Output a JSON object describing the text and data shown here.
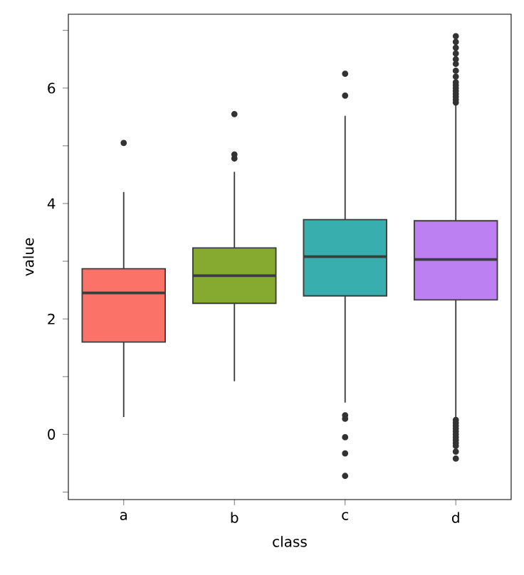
{
  "chart_data": {
    "type": "box",
    "xlabel": "class",
    "ylabel": "value",
    "categories": [
      "a",
      "b",
      "c",
      "d"
    ],
    "colors": [
      "#fa7268",
      "#86aa2f",
      "#38aeae",
      "#bc80f2"
    ],
    "boxes": [
      {
        "low": 0.3,
        "q1": 1.6,
        "median": 2.45,
        "q3": 2.87,
        "high": 4.2,
        "outliers": [
          5.05
        ]
      },
      {
        "low": 0.92,
        "q1": 2.27,
        "median": 2.75,
        "q3": 3.23,
        "high": 4.55,
        "outliers": [
          4.78,
          4.85,
          5.55
        ]
      },
      {
        "low": 0.55,
        "q1": 2.4,
        "median": 3.08,
        "q3": 3.72,
        "high": 5.52,
        "outliers": [
          6.25,
          5.87,
          0.33,
          0.27,
          -0.05,
          -0.33,
          -0.72
        ]
      },
      {
        "low": 0.3,
        "q1": 2.33,
        "median": 3.03,
        "q3": 3.7,
        "high": 5.73,
        "outliers": [
          5.75,
          5.8,
          5.85,
          5.9,
          5.95,
          6.0,
          6.05,
          6.1,
          6.2,
          6.3,
          6.42,
          6.5,
          6.6,
          6.7,
          6.8,
          6.9,
          0.25,
          0.2,
          0.15,
          0.1,
          0.05,
          0.0,
          -0.05,
          -0.1,
          -0.15,
          -0.2,
          -0.3,
          -0.42
        ]
      }
    ],
    "ylim": [
      -1.13,
      7.28
    ],
    "yticks": [
      {
        "value": -1,
        "label": null
      },
      0,
      {
        "value": 1,
        "label": null
      },
      2,
      {
        "value": 3,
        "label": null
      },
      4,
      {
        "value": 5,
        "label": null
      },
      6,
      {
        "value": 7,
        "label": null
      }
    ]
  }
}
